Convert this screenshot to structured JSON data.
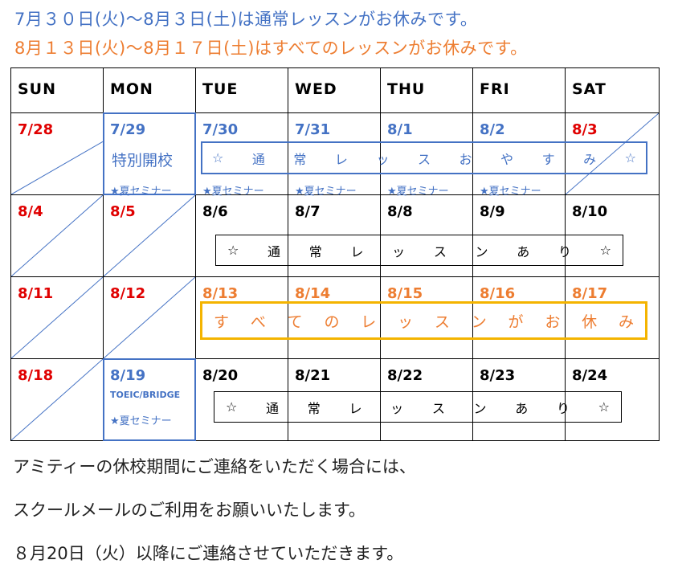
{
  "headline": {
    "line1": "7月３０日(火)～8月３日(土)は通常レッスンがお休みです。",
    "line2": "8月１３日(火)～8月１７日(土)はすべてのレッスンがお休みです。"
  },
  "days": [
    "SUN",
    "MON",
    "TUE",
    "WED",
    "THU",
    "FRI",
    "SAT"
  ],
  "weeks": [
    {
      "dates": [
        "7/28",
        "7/29",
        "7/30",
        "7/31",
        "8/1",
        "8/2",
        "8/3"
      ],
      "colors": [
        "#e00000",
        "#4472c4",
        "#4472c4",
        "#4472c4",
        "#4472c4",
        "#4472c4",
        "#e00000"
      ]
    },
    {
      "dates": [
        "8/4",
        "8/5",
        "8/6",
        "8/7",
        "8/8",
        "8/9",
        "8/10"
      ],
      "colors": [
        "#e00000",
        "#e00000",
        "#000000",
        "#000000",
        "#000000",
        "#000000",
        "#000000"
      ]
    },
    {
      "dates": [
        "8/11",
        "8/12",
        "8/13",
        "8/14",
        "8/15",
        "8/16",
        "8/17"
      ],
      "colors": [
        "#e00000",
        "#e00000",
        "#ed7d31",
        "#ed7d31",
        "#ed7d31",
        "#ed7d31",
        "#ed7d31"
      ]
    },
    {
      "dates": [
        "8/18",
        "8/19",
        "8/20",
        "8/21",
        "8/22",
        "8/23",
        "8/24"
      ],
      "colors": [
        "#e00000",
        "#4472c4",
        "#000000",
        "#000000",
        "#000000",
        "#000000",
        "#000000"
      ]
    }
  ],
  "special": {
    "tokubetsu": "特別開校",
    "summer_seminar": "★夏セミナー",
    "toeic": "TOEIC/BRIDGE"
  },
  "banners": {
    "normal_off": [
      "☆",
      "通",
      "常",
      "レ",
      "ッ",
      "ス",
      "お",
      "や",
      "す",
      "み",
      "☆"
    ],
    "normal_on": [
      "☆",
      "通",
      "常",
      "レ",
      "ッ",
      "ス",
      "ン",
      "あ",
      "り",
      "☆"
    ],
    "all_off": [
      "す",
      "べ",
      "て",
      "の",
      "レ",
      "ッ",
      "ス",
      "ン",
      "が",
      "お",
      "休",
      "み"
    ]
  },
  "footer": {
    "line1": "アミティーの休校期間にご連絡をいただく場合には、",
    "line2": "スクールメールのご利用をお願いいたします。",
    "line3": "８月20日（火）以降にご連絡させていただきます。"
  },
  "colors": {
    "blue": "#4472c4",
    "orange": "#ed7d31",
    "red": "#e00000",
    "yellow_border": "#f4b400"
  }
}
